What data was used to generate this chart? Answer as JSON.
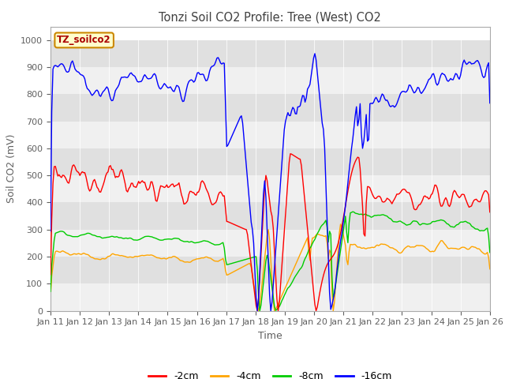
{
  "title": "Tonzi Soil CO2 Profile: Tree (West) CO2",
  "xlabel": "Time",
  "ylabel": "Soil CO2 (mV)",
  "ylim": [
    0,
    1050
  ],
  "yticks": [
    0,
    100,
    200,
    300,
    400,
    500,
    600,
    700,
    800,
    900,
    1000
  ],
  "legend_label": "TZ_soilco2",
  "line_labels": [
    "-2cm",
    "-4cm",
    "-8cm",
    "-16cm"
  ],
  "line_colors": [
    "#ff0000",
    "#ffa500",
    "#00cc00",
    "#0000ff"
  ],
  "bg_color": "#e8e8e8",
  "stripe_light": "#f0f0f0",
  "stripe_dark": "#e0e0e0",
  "title_color": "#404040",
  "axis_color": "#606060",
  "num_days": 15,
  "xtick_labels": [
    "Jan 11",
    "Jan 12",
    "Jan 13",
    "Jan 14",
    "Jan 15",
    "Jan 16",
    "Jan 17",
    "Jan 18",
    "Jan 19",
    "Jan 20",
    "Jan 21",
    "Jan 22",
    "Jan 23",
    "Jan 24",
    "Jan 25",
    "Jan 26"
  ]
}
